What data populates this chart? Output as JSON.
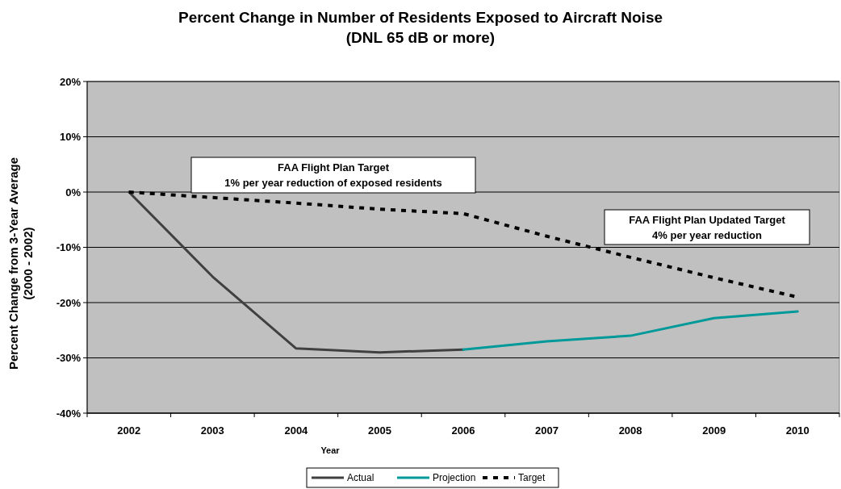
{
  "chart_data": {
    "type": "line",
    "title": "Percent Change in Number of Residents Exposed to Aircraft Noise\n(DNL 65 dB or more)",
    "xlabel": "Year",
    "ylabel": "Percent Change from 3-Year Average\n(2000 - 2002)",
    "categories": [
      "2002",
      "2003",
      "2004",
      "2005",
      "2006",
      "2007",
      "2008",
      "2009",
      "2010"
    ],
    "series": [
      {
        "name": "Actual",
        "color": "#404040",
        "line_style": "solid",
        "values": [
          0,
          -15.3,
          -28.3,
          -29.0,
          -28.5,
          null,
          null,
          null,
          null
        ]
      },
      {
        "name": "Projection",
        "color": "#009999",
        "line_style": "solid",
        "values": [
          null,
          null,
          null,
          null,
          -28.5,
          -27.0,
          -26.0,
          -22.8,
          -21.6
        ]
      },
      {
        "name": "Target",
        "color": "#000000",
        "line_style": "dashed",
        "values": [
          0,
          -1.0,
          -2.0,
          -3.1,
          -3.9,
          -8.0,
          -11.8,
          -15.5,
          -19.0
        ]
      }
    ],
    "ylim": [
      -40,
      20
    ],
    "yticks": [
      {
        "value": -40,
        "label": "-40%"
      },
      {
        "value": -30,
        "label": "-30%"
      },
      {
        "value": -20,
        "label": "-20%"
      },
      {
        "value": -10,
        "label": "-10%"
      },
      {
        "value": 0,
        "label": "0%"
      },
      {
        "value": 10,
        "label": "10%"
      },
      {
        "value": 20,
        "label": "20%"
      }
    ],
    "grid": "y",
    "legend": "bottom",
    "marker": "none",
    "annotations": [
      "FAA Flight Plan Target\n1%  per year reduction of exposed residents",
      "FAA Flight Plan Updated Target\n4%  per year reduction"
    ]
  }
}
